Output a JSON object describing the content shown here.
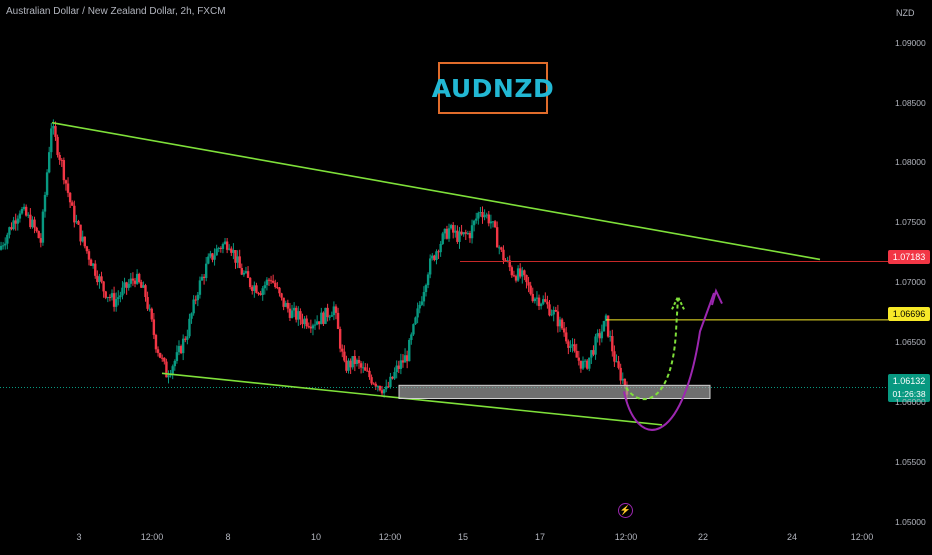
{
  "header": {
    "symbol_title": "Australian Dollar / New Zealand Dollar, 2h, FXCM",
    "currency": "NZD"
  },
  "annotation": {
    "ticker_badge": "AUDNZD"
  },
  "price_tags": {
    "resistance": "1.07183",
    "level": "1.06696",
    "last": "1.06132",
    "countdown": "01:26:38"
  },
  "colors": {
    "background": "#000000",
    "bull": "#089981",
    "bear": "#f23645",
    "trendline": "#7fe03a",
    "resistance_line": "#c62828",
    "level_line": "#f7e928",
    "zone": "#9e9e9e",
    "projection_purple": "#9c27b0",
    "projection_green": "#7fe03a",
    "badge_border": "#e06c2b",
    "badge_text": "#22b8d4"
  },
  "chart_data": {
    "type": "line",
    "title": "",
    "ylabel": "NZD",
    "ylim": [
      1.0496,
      1.0928
    ],
    "y_ticks": [
      "1.09000",
      "1.08500",
      "1.08000",
      "1.07500",
      "1.07000",
      "1.06500",
      "1.06000",
      "1.05500",
      "1.05000"
    ],
    "x_ticks": [
      "3",
      "12:00",
      "8",
      "10",
      "12:00",
      "15",
      "17",
      "12:00",
      "22",
      "24",
      "12:00"
    ],
    "price_path": [
      1.0728,
      1.0745,
      1.0762,
      1.0752,
      1.0735,
      1.0832,
      1.08,
      1.076,
      1.0735,
      1.0715,
      1.0695,
      1.0685,
      1.0695,
      1.0705,
      1.069,
      1.065,
      1.0625,
      1.0638,
      1.066,
      1.0695,
      1.0718,
      1.073,
      1.0735,
      1.0712,
      1.07,
      1.0695,
      1.0705,
      1.0685,
      1.0675,
      1.067,
      1.0668,
      1.0672,
      1.068,
      1.063,
      1.0635,
      1.0625,
      1.0618,
      1.061,
      1.0628,
      1.064,
      1.0675,
      1.0712,
      1.0732,
      1.0745,
      1.0738,
      1.0742,
      1.0762,
      1.0752,
      1.0725,
      1.071,
      1.0705,
      1.069,
      1.0685,
      1.0675,
      1.066,
      1.064,
      1.063,
      1.065,
      1.0668,
      1.063,
      1.0613
    ],
    "lines": {
      "upper_trendline": [
        [
          1.0834
        ],
        [
          1.072
        ]
      ],
      "lower_trendline": [
        [
          1.0625
        ],
        [
          1.0582
        ]
      ],
      "resistance": 1.07183,
      "level": 1.06696,
      "support_zone": [
        1.0604,
        1.0615
      ],
      "last_price": 1.06132
    }
  }
}
